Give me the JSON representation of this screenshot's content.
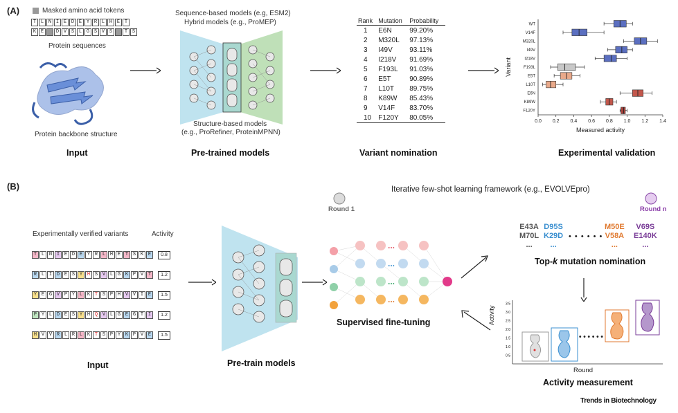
{
  "panel_a": {
    "label": "(A)",
    "legend_masked": "Masked amino acid tokens",
    "seq1": [
      "T",
      "L",
      "N",
      "I",
      "E",
      "D",
      "E",
      "Y",
      "R",
      "L",
      "H",
      "E",
      "T"
    ],
    "seq2": [
      "K",
      "E",
      "",
      "D",
      "V",
      "S",
      "L",
      "G",
      "S",
      "V",
      "S",
      "",
      "T",
      "S"
    ],
    "protein_sequences": "Protein sequences",
    "backbone": "Protein backbone structure",
    "input_title": "Input",
    "models_top": "Sequence-based models (e.g, ESM2)",
    "models_mid": "Hybrid models (e.g., ProMEP)",
    "models_bottom": "Structure-based models",
    "models_bottom2": "(e.g., ProRefiner, ProteinMPNN)",
    "pretrained_title": "Pre-trained models",
    "table_headers": [
      "Rank",
      "Mutation",
      "Probability"
    ],
    "table_rows": [
      [
        "1",
        "E6N",
        "99.20%"
      ],
      [
        "2",
        "M320L",
        "97.13%"
      ],
      [
        "3",
        "I49V",
        "93.11%"
      ],
      [
        "4",
        "I218V",
        "91.69%"
      ],
      [
        "5",
        "F193L",
        "91.03%"
      ],
      [
        "6",
        "E5T",
        "90.89%"
      ],
      [
        "7",
        "L10T",
        "89.75%"
      ],
      [
        "8",
        "K89W",
        "85.43%"
      ],
      [
        "9",
        "V14F",
        "83.70%"
      ],
      [
        "10",
        "F120Y",
        "80.05%"
      ]
    ],
    "nomination_title": "Variant nomination",
    "validation_title": "Experimental validation"
  },
  "chart_data": {
    "type": "box",
    "categories": [
      "WT",
      "V14F",
      "M320L",
      "I49V",
      "I218V",
      "F193L",
      "E5T",
      "L10T",
      "E6N",
      "K89W",
      "F120Y"
    ],
    "medians": [
      0.92,
      0.46,
      1.15,
      0.94,
      0.82,
      0.3,
      0.32,
      0.14,
      1.12,
      0.8,
      0.96
    ],
    "q1": [
      0.85,
      0.38,
      1.08,
      0.87,
      0.74,
      0.22,
      0.25,
      0.09,
      1.06,
      0.76,
      0.93
    ],
    "q3": [
      0.99,
      0.55,
      1.22,
      1.0,
      0.88,
      0.42,
      0.38,
      0.2,
      1.18,
      0.84,
      0.98
    ],
    "whisker_low": [
      0.74,
      0.28,
      0.96,
      0.78,
      0.64,
      0.14,
      0.18,
      0.05,
      0.92,
      0.7,
      0.92
    ],
    "whisker_high": [
      1.06,
      0.74,
      1.34,
      1.06,
      1.0,
      0.52,
      0.47,
      0.28,
      1.28,
      0.88,
      1.0
    ],
    "colors": [
      "#5b6fc0",
      "#5b6fc0",
      "#5b6fc0",
      "#5b6fc0",
      "#5b6fc0",
      "#c8c8c8",
      "#e9a98a",
      "#e9a98a",
      "#c2574c",
      "#c2574c",
      "#a8403a"
    ],
    "xlabel": "Measured activity",
    "ylabel": "Variant",
    "xticks": [
      "0.0",
      "0.2",
      "0.4",
      "0.6",
      "0.8",
      "1.0",
      "1.2",
      "1.4"
    ],
    "xlim": [
      0,
      1.4
    ]
  },
  "panel_b": {
    "label": "(B)",
    "verified_label": "Experimentally verified variants",
    "activity_label": "Activity",
    "seqs": [
      {
        "aa": [
          "T",
          "L",
          "N",
          "I",
          "E",
          "D",
          "E",
          "Y",
          "R",
          "L",
          "H",
          "E",
          "T",
          "S",
          "K",
          "E"
        ],
        "activity": "0.8"
      },
      {
        "aa": [
          "R",
          "L",
          "I",
          "D",
          "E",
          "S",
          "Y",
          "H",
          "S",
          "V",
          "L",
          "G",
          "K",
          "P",
          "V",
          "T"
        ],
        "activity": "1.2"
      },
      {
        "aa": [
          "Y",
          "E",
          "G",
          "V",
          "P",
          "Y",
          "L",
          "K",
          "T",
          "S",
          "P",
          "H",
          "V",
          "V",
          "I",
          "E"
        ],
        "activity": "1.5"
      },
      {
        "aa": [
          "P",
          "Y",
          "L",
          "D",
          "E",
          "S",
          "Y",
          "H",
          "Q",
          "V",
          "L",
          "G",
          "E",
          "G",
          "T",
          "I"
        ],
        "activity": "1.2"
      },
      {
        "aa": [
          "H",
          "V",
          "V",
          "R",
          "L",
          "R",
          "L",
          "K",
          "T",
          "S",
          "P",
          "Y",
          "K",
          "P",
          "V",
          "E"
        ],
        "activity": "1.5"
      }
    ],
    "input_title": "Input",
    "pretrain_title": "Pre-train models",
    "finetune_title": "Supervised fine-tuning",
    "iterative": "Iterative few-shot learning framework (e.g., EVOLVEpro)",
    "round1": "Round 1",
    "roundn": "Round n",
    "mutations": [
      {
        "a": "E43A",
        "b": "M70L",
        "c": "...",
        "color": "#555555"
      },
      {
        "a": "D95S",
        "b": "K29D",
        "c": "...",
        "color": "#3a8fd0"
      },
      {
        "a": "M50E",
        "b": "V58A",
        "c": "...",
        "color": "#e07a30"
      },
      {
        "a": "V69S",
        "b": "E140K",
        "c": "...",
        "color": "#7a3d98"
      }
    ],
    "dots": "• • • • • •",
    "topk_title": "Top-",
    "topk_k": "k",
    "topk_rest": " mutation nomination",
    "activity_axis": "Activity",
    "round_axis": "Round",
    "activity_yticks": [
      "0.5",
      "1.0",
      "1.5",
      "2.0",
      "2.5",
      "3.0",
      "3.5"
    ],
    "measurement_title": "Activity measurement",
    "journal": "Trends in Biotechnology"
  }
}
